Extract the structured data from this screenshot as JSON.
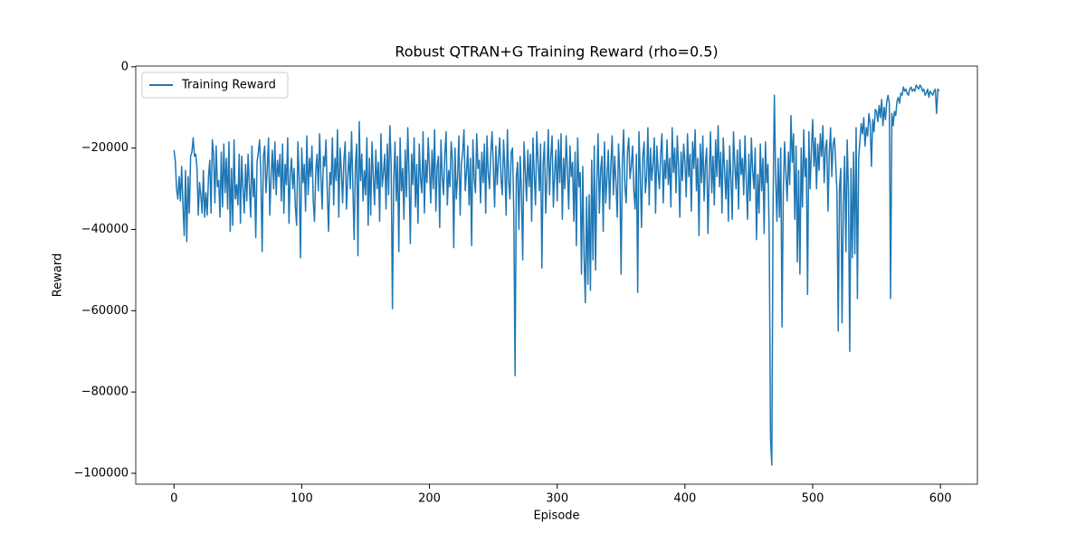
{
  "chart_data": {
    "type": "line",
    "title": "Robust QTRAN+G Training Reward (rho=0.5)",
    "x_label": "Episode",
    "y_label": "Reward",
    "legend": "upper left",
    "xlim": [
      -29.95,
      628.95
    ],
    "ylim": [
      -102675,
      175
    ],
    "xticks": [
      0,
      100,
      200,
      300,
      400,
      500,
      600
    ],
    "yticks": [
      {
        "value": -100000,
        "label": "−100000"
      },
      {
        "value": -80000,
        "label": "−80000"
      },
      {
        "value": -60000,
        "label": "−60000"
      },
      {
        "value": -40000,
        "label": "−40000"
      },
      {
        "value": -20000,
        "label": "−20000"
      },
      0
    ],
    "x": [
      0,
      1,
      2,
      3,
      4,
      5,
      6,
      7,
      8,
      9,
      10,
      11,
      12,
      13,
      14,
      15,
      16,
      17,
      18,
      19,
      20,
      21,
      22,
      23,
      24,
      25,
      26,
      27,
      28,
      29,
      30,
      31,
      32,
      33,
      34,
      35,
      36,
      37,
      38,
      39,
      40,
      41,
      42,
      43,
      44,
      45,
      46,
      47,
      48,
      49,
      50,
      51,
      52,
      53,
      54,
      55,
      56,
      57,
      58,
      59,
      60,
      61,
      62,
      63,
      64,
      65,
      66,
      67,
      68,
      69,
      70,
      71,
      72,
      73,
      74,
      75,
      76,
      77,
      78,
      79,
      80,
      81,
      82,
      83,
      84,
      85,
      86,
      87,
      88,
      89,
      90,
      91,
      92,
      93,
      94,
      95,
      96,
      97,
      98,
      99,
      100,
      101,
      102,
      103,
      104,
      105,
      106,
      107,
      108,
      109,
      110,
      111,
      112,
      113,
      114,
      115,
      116,
      117,
      118,
      119,
      120,
      121,
      122,
      123,
      124,
      125,
      126,
      127,
      128,
      129,
      130,
      131,
      132,
      133,
      134,
      135,
      136,
      137,
      138,
      139,
      140,
      141,
      142,
      143,
      144,
      145,
      146,
      147,
      148,
      149,
      150,
      151,
      152,
      153,
      154,
      155,
      156,
      157,
      158,
      159,
      160,
      161,
      162,
      163,
      164,
      165,
      166,
      167,
      168,
      169,
      170,
      171,
      172,
      173,
      174,
      175,
      176,
      177,
      178,
      179,
      180,
      181,
      182,
      183,
      184,
      185,
      186,
      187,
      188,
      189,
      190,
      191,
      192,
      193,
      194,
      195,
      196,
      197,
      198,
      199,
      200,
      201,
      202,
      203,
      204,
      205,
      206,
      207,
      208,
      209,
      210,
      211,
      212,
      213,
      214,
      215,
      216,
      217,
      218,
      219,
      220,
      221,
      222,
      223,
      224,
      225,
      226,
      227,
      228,
      229,
      230,
      231,
      232,
      233,
      234,
      235,
      236,
      237,
      238,
      239,
      240,
      241,
      242,
      243,
      244,
      245,
      246,
      247,
      248,
      249,
      250,
      251,
      252,
      253,
      254,
      255,
      256,
      257,
      258,
      259,
      260,
      261,
      262,
      263,
      264,
      265,
      266,
      267,
      268,
      269,
      270,
      271,
      272,
      273,
      274,
      275,
      276,
      277,
      278,
      279,
      280,
      281,
      282,
      283,
      284,
      285,
      286,
      287,
      288,
      289,
      290,
      291,
      292,
      293,
      294,
      295,
      296,
      297,
      298,
      299,
      300,
      301,
      302,
      303,
      304,
      305,
      306,
      307,
      308,
      309,
      310,
      311,
      312,
      313,
      314,
      315,
      316,
      317,
      318,
      319,
      320,
      321,
      322,
      323,
      324,
      325,
      326,
      327,
      328,
      329,
      330,
      331,
      332,
      333,
      334,
      335,
      336,
      337,
      338,
      339,
      340,
      341,
      342,
      343,
      344,
      345,
      346,
      347,
      348,
      349,
      350,
      351,
      352,
      353,
      354,
      355,
      356,
      357,
      358,
      359,
      360,
      361,
      362,
      363,
      364,
      365,
      366,
      367,
      368,
      369,
      370,
      371,
      372,
      373,
      374,
      375,
      376,
      377,
      378,
      379,
      380,
      381,
      382,
      383,
      384,
      385,
      386,
      387,
      388,
      389,
      390,
      391,
      392,
      393,
      394,
      395,
      396,
      397,
      398,
      399,
      400,
      401,
      402,
      403,
      404,
      405,
      406,
      407,
      408,
      409,
      410,
      411,
      412,
      413,
      414,
      415,
      416,
      417,
      418,
      419,
      420,
      421,
      422,
      423,
      424,
      425,
      426,
      427,
      428,
      429,
      430,
      431,
      432,
      433,
      434,
      435,
      436,
      437,
      438,
      439,
      440,
      441,
      442,
      443,
      444,
      445,
      446,
      447,
      448,
      449,
      450,
      451,
      452,
      453,
      454,
      455,
      456,
      457,
      458,
      459,
      460,
      461,
      462,
      463,
      464,
      465,
      466,
      467,
      468,
      469,
      470,
      471,
      472,
      473,
      474,
      475,
      476,
      477,
      478,
      479,
      480,
      481,
      482,
      483,
      484,
      485,
      486,
      487,
      488,
      489,
      490,
      491,
      492,
      493,
      494,
      495,
      496,
      497,
      498,
      499,
      500,
      501,
      502,
      503,
      504,
      505,
      506,
      507,
      508,
      509,
      510,
      511,
      512,
      513,
      514,
      515,
      516,
      517,
      518,
      519,
      520,
      521,
      522,
      523,
      524,
      525,
      526,
      527,
      528,
      529,
      530,
      531,
      532,
      533,
      534,
      535,
      536,
      537,
      538,
      539,
      540,
      541,
      542,
      543,
      544,
      545,
      546,
      547,
      548,
      549,
      550,
      551,
      552,
      553,
      554,
      555,
      556,
      557,
      558,
      559,
      560,
      561,
      562,
      563,
      564,
      565,
      566,
      567,
      568,
      569,
      570,
      571,
      572,
      573,
      574,
      575,
      576,
      577,
      578,
      579,
      580,
      581,
      582,
      583,
      584,
      585,
      586,
      587,
      588,
      589,
      590,
      591,
      592,
      593,
      594,
      595,
      596,
      597,
      598,
      599
    ],
    "series": [
      {
        "name": "Training Reward",
        "color": "#1f77b4",
        "values": [
          -20500,
          -23000,
          -30000,
          -32500,
          -27000,
          -33000,
          -24500,
          -34000,
          -41500,
          -25500,
          -43000,
          -27000,
          -36000,
          -22000,
          -21000,
          -17500,
          -22000,
          -21500,
          -25000,
          -36500,
          -28500,
          -31500,
          -36000,
          -25500,
          -37000,
          -31000,
          -36500,
          -27000,
          -23000,
          -36000,
          -18000,
          -21500,
          -33500,
          -19500,
          -29500,
          -28000,
          -37000,
          -21000,
          -34500,
          -19000,
          -31000,
          -22500,
          -35000,
          -18500,
          -40500,
          -25000,
          -39000,
          -18000,
          -32500,
          -29000,
          -34000,
          -21500,
          -38500,
          -22000,
          -30000,
          -36000,
          -24000,
          -33000,
          -21500,
          -29000,
          -37000,
          -19500,
          -32000,
          -27500,
          -42000,
          -23500,
          -21000,
          -18000,
          -26500,
          -45500,
          -22000,
          -19500,
          -31000,
          -25000,
          -17500,
          -36500,
          -27000,
          -20500,
          -30000,
          -18500,
          -31500,
          -23000,
          -27000,
          -21500,
          -33000,
          -19000,
          -36000,
          -24000,
          -29000,
          -17500,
          -38500,
          -26500,
          -22500,
          -30000,
          -25000,
          -34500,
          -39000,
          -18500,
          -27500,
          -47000,
          -20000,
          -28500,
          -24000,
          -35500,
          -17000,
          -31500,
          -22500,
          -27000,
          -19500,
          -33000,
          -38000,
          -25500,
          -21500,
          -30500,
          -16500,
          -27000,
          -35000,
          -22000,
          -24500,
          -18000,
          -31000,
          -40500,
          -26000,
          -29000,
          -17500,
          -34000,
          -22500,
          -28000,
          -15500,
          -37000,
          -20000,
          -25500,
          -33500,
          -23000,
          -18500,
          -35000,
          -27500,
          -21000,
          -30000,
          -16000,
          -29000,
          -42500,
          -24500,
          -19000,
          -46500,
          -13500,
          -28000,
          -21500,
          -33000,
          -25500,
          -31500,
          -17500,
          -39000,
          -22500,
          -36500,
          -18500,
          -27000,
          -34000,
          -20500,
          -30000,
          -23500,
          -38000,
          -16500,
          -29500,
          -26000,
          -21500,
          -35000,
          -19000,
          -31500,
          -14500,
          -24000,
          -59500,
          -28500,
          -18500,
          -33000,
          -22000,
          -45500,
          -17500,
          -30500,
          -25000,
          -37500,
          -20500,
          -32000,
          -15000,
          -26500,
          -43500,
          -21500,
          -29000,
          -17500,
          -34500,
          -24000,
          -38500,
          -19000,
          -27500,
          -31000,
          -16000,
          -36000,
          -23000,
          -28500,
          -17500,
          -25000,
          -33500,
          -20500,
          -30000,
          -15500,
          -35500,
          -24500,
          -22000,
          -39500,
          -18000,
          -27000,
          -31500,
          -21500,
          -16000,
          -34000,
          -25500,
          -29500,
          -18500,
          -23000,
          -44500,
          -20000,
          -32500,
          -27000,
          -17000,
          -36500,
          -24000,
          -21000,
          -15500,
          -30500,
          -26000,
          -19500,
          -34000,
          -22500,
          -44000,
          -18000,
          -27500,
          -31000,
          -16500,
          -25000,
          -23000,
          -33500,
          -21000,
          -28500,
          -19000,
          -36000,
          -17000,
          -26000,
          -30000,
          -21500,
          -16000,
          -24500,
          -34500,
          -19500,
          -29000,
          -22500,
          -17500,
          -27500,
          -31500,
          -18000,
          -25000,
          -36500,
          -15500,
          -28000,
          -32500,
          -21000,
          -20000,
          -35500,
          -76000,
          -27000,
          -23500,
          -40000,
          -22000,
          -31000,
          -47500,
          -18500,
          -25500,
          -33000,
          -20500,
          -29500,
          -21500,
          -38000,
          -17500,
          -26500,
          -34000,
          -16000,
          -23000,
          -30500,
          -19000,
          -49500,
          -24000,
          -18500,
          -36000,
          -27000,
          -15500,
          -31500,
          -22000,
          -17000,
          -34500,
          -26000,
          -20500,
          -33000,
          -18000,
          -28500,
          -16500,
          -37500,
          -22500,
          -30000,
          -17000,
          -25500,
          -35000,
          -19500,
          -27000,
          -23500,
          -38000,
          -21000,
          -44000,
          -17500,
          -29500,
          -26000,
          -51000,
          -24500,
          -46500,
          -58000,
          -32000,
          -53500,
          -31500,
          -55000,
          -23000,
          -47500,
          -19500,
          -50000,
          -29000,
          -16500,
          -36000,
          -25500,
          -22000,
          -40500,
          -18500,
          -33500,
          -27000,
          -20500,
          -35000,
          -24000,
          -17000,
          -31500,
          -22000,
          -28500,
          -37000,
          -19000,
          -26000,
          -51000,
          -23500,
          -15500,
          -29500,
          -33500,
          -21000,
          -17500,
          -27500,
          -24500,
          -19500,
          -30500,
          -35000,
          -21500,
          -55500,
          -16000,
          -26000,
          -39500,
          -22000,
          -18500,
          -31000,
          -27000,
          -15000,
          -34000,
          -20000,
          -28000,
          -24000,
          -17500,
          -36000,
          -19500,
          -25500,
          -30000,
          -21500,
          -16500,
          -33500,
          -23000,
          -27500,
          -18000,
          -29000,
          -22500,
          -34500,
          -15000,
          -26000,
          -20000,
          -31000,
          -17000,
          -24500,
          -37000,
          -21000,
          -28000,
          -19000,
          -23500,
          -32000,
          -16500,
          -27000,
          -21500,
          -35500,
          -18500,
          -25000,
          -15500,
          -30500,
          -22500,
          -41500,
          -19000,
          -28500,
          -17000,
          -33000,
          -24000,
          -20000,
          -41000,
          -26500,
          -16000,
          -31000,
          -22000,
          -34000,
          -18000,
          -27000,
          -14500,
          -29500,
          -21000,
          -36000,
          -17500,
          -25000,
          -32500,
          -23000,
          -38000,
          -19500,
          -27500,
          -37500,
          -16000,
          -24000,
          -30000,
          -20500,
          -35000,
          -18000,
          -26500,
          -22500,
          -31500,
          -17000,
          -28000,
          -37500,
          -21500,
          -33000,
          -17500,
          -25500,
          -30000,
          -20000,
          -42500,
          -26500,
          -36000,
          -19000,
          -30500,
          -22500,
          -41000,
          -18500,
          -28500,
          -24000,
          -42500,
          -91500,
          -98000,
          -33000,
          -7000,
          -27000,
          -38000,
          -22500,
          -37000,
          -20000,
          -64000,
          -31000,
          -18500,
          -26000,
          -33000,
          -21000,
          -29000,
          -12000,
          -23500,
          -16500,
          -37500,
          -19500,
          -48000,
          -25500,
          -51000,
          -20000,
          -34500,
          -15500,
          -27000,
          -22500,
          -56000,
          -16000,
          -30000,
          -20500,
          -13000,
          -24500,
          -17500,
          -30000,
          -19000,
          -25500,
          -16500,
          -22000,
          -14500,
          -28500,
          -20000,
          -18000,
          -35500,
          -21500,
          -15000,
          -27000,
          -19000,
          -17500,
          -23500,
          -31000,
          -65000,
          -29500,
          -25000,
          -63000,
          -34000,
          -22000,
          -45500,
          -18000,
          -30500,
          -70000,
          -25000,
          -47000,
          -21000,
          -46000,
          -15000,
          -57000,
          -22500,
          -18000,
          -14000,
          -16500,
          -12500,
          -19500,
          -15000,
          -17000,
          -11500,
          -14000,
          -24500,
          -13000,
          -16000,
          -10500,
          -11000,
          -13500,
          -9500,
          -12500,
          -8000,
          -14500,
          -10000,
          -13000,
          -8500,
          -7000,
          -9000,
          -57000,
          -11500,
          -14500,
          -11000,
          -12000,
          -8500,
          -7500,
          -9000,
          -6500,
          -7000,
          -5000,
          -6000,
          -5500,
          -6500,
          -7000,
          -5500,
          -5000,
          -6000,
          -5500,
          -6000,
          -4500,
          -5000,
          -5500,
          -4500,
          -5000,
          -6000,
          -5500,
          -7000,
          -6500,
          -5500,
          -7500,
          -6000,
          -6500,
          -7000,
          -6000,
          -5500,
          -11500,
          -5500,
          -6000
        ]
      }
    ]
  }
}
